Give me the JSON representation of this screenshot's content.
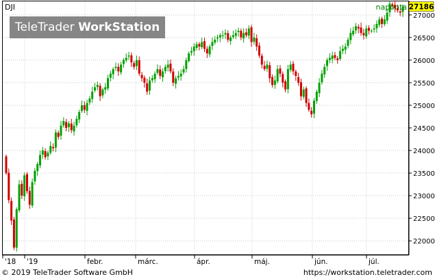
{
  "chart_data": {
    "type": "candlestick",
    "title": "DJI",
    "period": "naponta",
    "last_value": 27186,
    "ylim": [
      21700,
      27300
    ],
    "y_ticks": [
      22000,
      22500,
      23000,
      23500,
      24000,
      24500,
      25000,
      25500,
      26000,
      26500,
      27000
    ],
    "x_labels": [
      "'18",
      "'19",
      "febr.",
      "márc.",
      "ápr.",
      "máj.",
      "jún.",
      "júl."
    ],
    "colors": {
      "up": "#00a000",
      "down": "#d00000",
      "last_value_box": "#ffff00",
      "grid": "#c8c8c8",
      "background_tick": "#ffffff"
    },
    "closes": [
      23500,
      22900,
      22450,
      21850,
      22700,
      23250,
      23000,
      23450,
      23100,
      22800,
      23300,
      23550,
      23700,
      23900,
      24000,
      23850,
      23950,
      24100,
      24050,
      24400,
      24300,
      24550,
      24650,
      24500,
      24600,
      24450,
      24550,
      24700,
      24850,
      25000,
      24900,
      25050,
      25150,
      25300,
      25400,
      25450,
      25200,
      25350,
      25400,
      25600,
      25700,
      25800,
      25850,
      25750,
      25900,
      26000,
      26050,
      26100,
      25950,
      25850,
      26000,
      25700,
      25600,
      25500,
      25300,
      25550,
      25600,
      25700,
      25800,
      25650,
      25750,
      25850,
      25900,
      25750,
      25500,
      25600,
      25650,
      25700,
      25800,
      26000,
      26150,
      26200,
      26300,
      26350,
      26300,
      26400,
      26250,
      26150,
      26300,
      26400,
      26450,
      26500,
      26550,
      26550,
      26600,
      26450,
      26500,
      26550,
      26600,
      26650,
      26500,
      26600,
      26550,
      26700,
      26400,
      26500,
      26300,
      26100,
      25900,
      25800,
      25900,
      25600,
      25450,
      25550,
      25800,
      25700,
      25500,
      25350,
      25800,
      25900,
      25750,
      25650,
      25500,
      25200,
      25350,
      25050,
      24900,
      24800,
      25100,
      25300,
      25500,
      25700,
      25850,
      26000,
      26050,
      26100,
      26050,
      26000,
      26200,
      26250,
      26300,
      26450,
      26600,
      26650,
      26750,
      26700,
      26600,
      26550,
      26700,
      26650,
      26650,
      26700,
      26800,
      26900,
      26800,
      26900,
      27050,
      27250,
      27200,
      27150,
      27100,
      27050,
      27186
    ]
  },
  "footer": {
    "copyright": "© 2019 TeleTrader Software GmbH",
    "url": "https://workstation.teletrader.com"
  },
  "watermark": {
    "part1": "TeleTrader",
    "part2": "WorkStation"
  }
}
